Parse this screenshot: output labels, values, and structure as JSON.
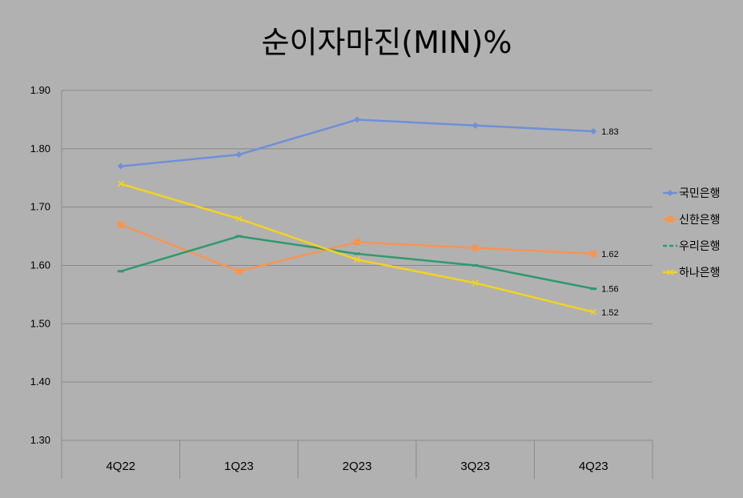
{
  "chart_data": {
    "type": "line",
    "title": "순이자마진(MIN)%",
    "xlabel": "",
    "ylabel": "",
    "categories": [
      "4Q22",
      "1Q23",
      "2Q23",
      "3Q23",
      "4Q23"
    ],
    "ylim": [
      1.3,
      1.9
    ],
    "yticks": [
      "1.90",
      "1.80",
      "1.70",
      "1.60",
      "1.50",
      "1.40",
      "1.30"
    ],
    "grid": true,
    "legend_position": "right",
    "series": [
      {
        "name": "국민은행",
        "values": [
          1.77,
          1.79,
          1.85,
          1.84,
          1.83
        ],
        "color": "#6f8fd9",
        "marker": "diamond",
        "end_label": "1.83"
      },
      {
        "name": "신한은행",
        "values": [
          1.67,
          1.59,
          1.64,
          1.63,
          1.62
        ],
        "color": "#f79552",
        "marker": "square",
        "end_label": "1.62"
      },
      {
        "name": "우리은행",
        "values": [
          1.59,
          1.65,
          1.62,
          1.6,
          1.56
        ],
        "color": "#2e9a6c",
        "marker": "dash",
        "end_label": "1.56"
      },
      {
        "name": "하나은행",
        "values": [
          1.74,
          1.68,
          1.61,
          1.57,
          1.52
        ],
        "color": "#f2d321",
        "marker": "x",
        "end_label": "1.52"
      }
    ]
  }
}
